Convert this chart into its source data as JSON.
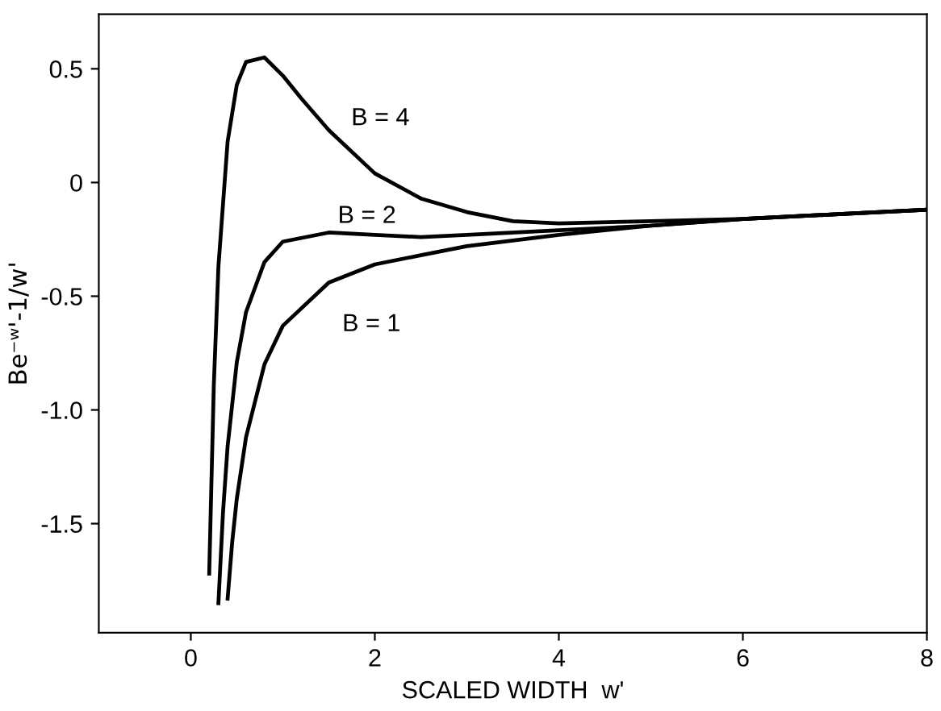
{
  "chart_data": {
    "type": "line",
    "xlabel": "SCALED WIDTH  w'",
    "ylabel": "Be⁻ʷ'-1/w'",
    "xlim": [
      -1,
      8
    ],
    "xticks": [
      0,
      2,
      4,
      6,
      8
    ],
    "ylim": [
      -1.98,
      0.74
    ],
    "yticks": [
      {
        "value": 0.5,
        "label": "0.5"
      },
      {
        "value": 0,
        "label": "0"
      },
      {
        "value": -0.5,
        "label": "-0.5"
      },
      {
        "value": -1.0,
        "label": "-1.0"
      },
      {
        "value": -1.5,
        "label": "-1.5"
      }
    ],
    "grid": false,
    "legend": false,
    "marker": "none",
    "line_style": "solid",
    "series": [
      {
        "name": "B = 4",
        "color": "#000000",
        "x": [
          0.2,
          0.25,
          0.3,
          0.4,
          0.5,
          0.6,
          0.8,
          1,
          1.2,
          1.5,
          2,
          2.5,
          3,
          3.5,
          4,
          5,
          6,
          7,
          8
        ],
        "values": [
          -1.72,
          -0.89,
          -0.37,
          0.18,
          0.43,
          0.53,
          0.55,
          0.47,
          0.37,
          0.23,
          0.04,
          -0.07,
          -0.13,
          -0.17,
          -0.18,
          -0.17,
          -0.16,
          -0.14,
          -0.12
        ]
      },
      {
        "name": "B = 2",
        "color": "#000000",
        "x": [
          0.3,
          0.35,
          0.4,
          0.5,
          0.6,
          0.8,
          1,
          1.5,
          2,
          2.5,
          3,
          4,
          5,
          6,
          7,
          8
        ],
        "values": [
          -1.85,
          -1.45,
          -1.16,
          -0.79,
          -0.57,
          -0.35,
          -0.26,
          -0.22,
          -0.23,
          -0.24,
          -0.23,
          -0.21,
          -0.19,
          -0.16,
          -0.14,
          -0.12
        ]
      },
      {
        "name": "B = 1",
        "color": "#000000",
        "x": [
          0.4,
          0.45,
          0.5,
          0.6,
          0.8,
          1,
          1.5,
          2,
          2.5,
          3,
          4,
          5,
          6,
          7,
          8
        ],
        "values": [
          -1.83,
          -1.58,
          -1.39,
          -1.12,
          -0.8,
          -0.63,
          -0.44,
          -0.36,
          -0.32,
          -0.28,
          -0.23,
          -0.19,
          -0.16,
          -0.14,
          -0.12
        ]
      }
    ]
  }
}
